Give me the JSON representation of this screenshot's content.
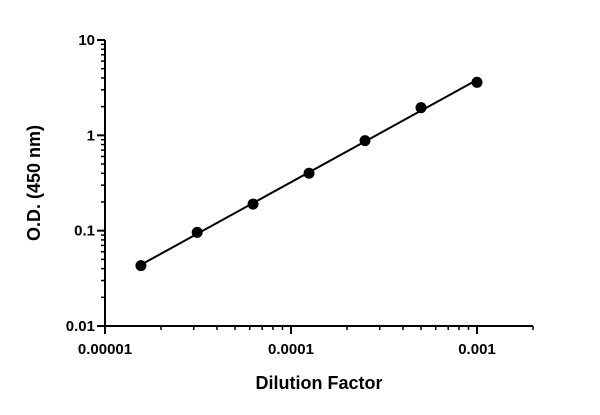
{
  "chart_data": {
    "type": "scatter",
    "title": "",
    "xlabel": "Dilution Factor",
    "ylabel": "O.D. (450 nm)",
    "x_scale": "log",
    "y_scale": "log",
    "xlim": [
      1e-05,
      0.002
    ],
    "ylim": [
      0.01,
      10
    ],
    "x_ticks": [
      1e-05,
      0.0001,
      0.001
    ],
    "x_tick_labels": [
      "0.00001",
      "0.0001",
      "0.001"
    ],
    "y_ticks": [
      0.01,
      0.1,
      1,
      10
    ],
    "y_tick_labels": [
      "0.01",
      "0.1",
      "1",
      "10"
    ],
    "grid": false,
    "legend": "none",
    "colors": {
      "series": "#000000"
    },
    "series": [
      {
        "x": [
          1.56e-05,
          3.13e-05,
          6.25e-05,
          0.000125,
          0.00025,
          0.0005,
          0.001
        ],
        "y": [
          0.043,
          0.096,
          0.19,
          0.4,
          0.88,
          1.95,
          3.6
        ],
        "fit_line": true
      }
    ]
  }
}
